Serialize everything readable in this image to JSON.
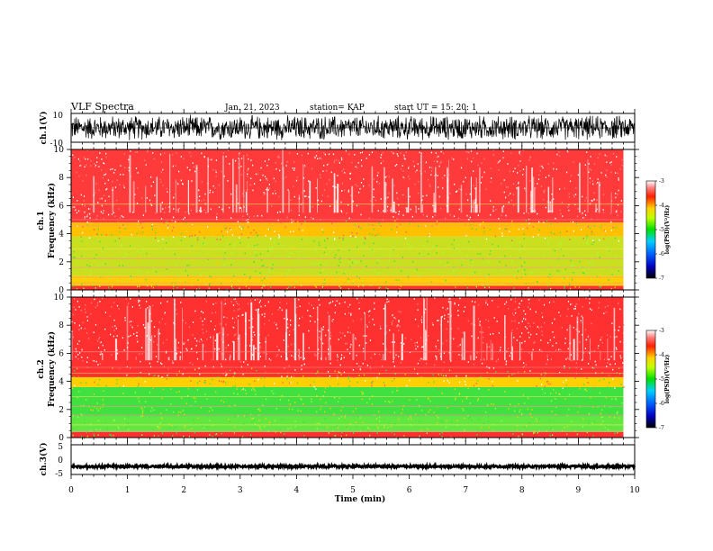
{
  "header": {
    "title": "VLF Spectra",
    "date": "Jan. 21, 2023",
    "station": "station= KAP",
    "start": "start UT =  15: 20: 1"
  },
  "chart_data": [
    {
      "type": "line",
      "panel": "waveform-ch1",
      "ylabel": "ch.1(V)",
      "ylim": [
        -10,
        10
      ],
      "y_ticks": [
        "10",
        "-10"
      ],
      "xlim": [
        0,
        10
      ]
    },
    {
      "type": "heatmap",
      "panel": "spectrogram-ch1",
      "ylabel": "ch.1\nFrequency (kHz)",
      "ylim": [
        0,
        10
      ],
      "y_ticks": [
        "0",
        "2",
        "4",
        "6",
        "8",
        "10"
      ],
      "xlim": [
        0,
        10
      ],
      "data_extent_x": 9.8,
      "colorbar": {
        "label": "log(PSD)(V²/Hz)",
        "range": [
          -7,
          -3
        ],
        "ticks": [
          "-3",
          "-4",
          "-5",
          "-6",
          "-7"
        ]
      }
    },
    {
      "type": "heatmap",
      "panel": "spectrogram-ch2",
      "ylabel": "ch.2\nFrequency (kHz)",
      "ylim": [
        0,
        10
      ],
      "y_ticks": [
        "0",
        "2",
        "4",
        "6",
        "8",
        "10"
      ],
      "xlim": [
        0,
        10
      ],
      "data_extent_x": 9.8,
      "colorbar": {
        "label": "log(PSD)(V²/Hz)",
        "range": [
          -7,
          -3
        ],
        "ticks": [
          "-3",
          "-4",
          "-5",
          "-6",
          "-7"
        ]
      }
    },
    {
      "type": "line",
      "panel": "waveform-ch3",
      "ylabel": "ch.3(V)",
      "ylim": [
        -5,
        5
      ],
      "y_ticks": [
        "5",
        "0",
        "-5"
      ],
      "xlim": [
        0,
        10
      ],
      "x_ticks": [
        "0",
        "1",
        "2",
        "3",
        "4",
        "5",
        "6",
        "7",
        "8",
        "9",
        "10"
      ],
      "xlabel": "Time (min)"
    }
  ],
  "colors": {
    "trace": "#000000",
    "spectrum_high": "#ff2020",
    "spectrum_mid": "#ffd000",
    "spectrum_low": "#40e040"
  }
}
